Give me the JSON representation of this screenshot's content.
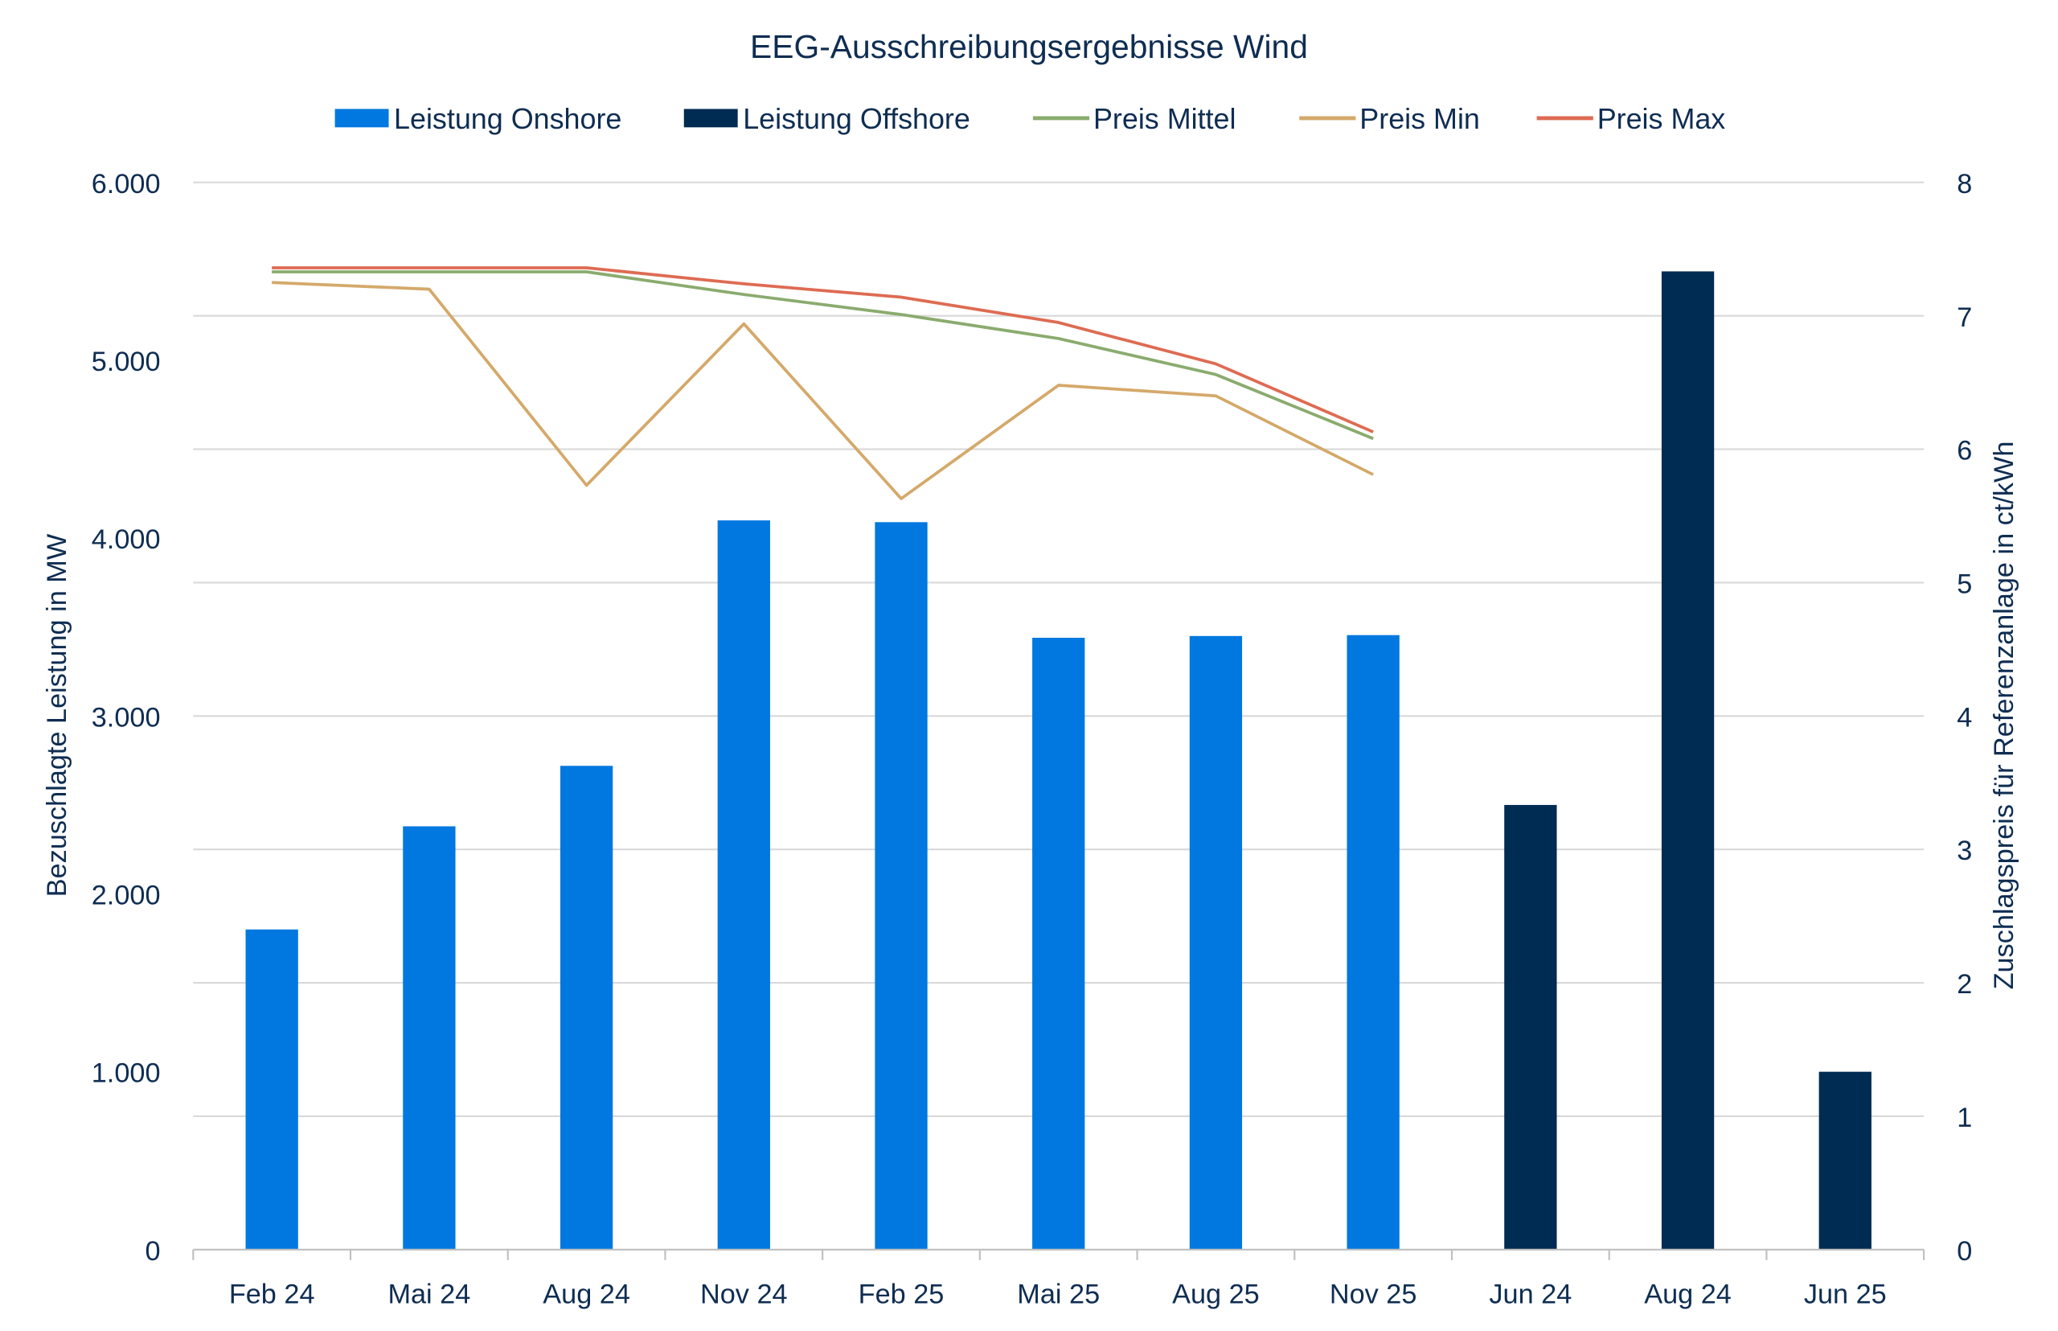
{
  "chart_data": {
    "type": "bar",
    "title": "EEG-Ausschreibungsergebnisse Wind",
    "categories": [
      "Feb 24",
      "Mai 24",
      "Aug 24",
      "Nov 24",
      "Feb 25",
      "Mai 25",
      "Aug 25",
      "Nov 25",
      "Jun 24",
      "Aug 24",
      "Jun 25"
    ],
    "ylabel": "Bezuschlagte Leistung in MW",
    "y2label": "Zuschlagspreis für Referenzanlage in ct/kWh",
    "ylim": [
      0,
      6000
    ],
    "y2lim": [
      0,
      8
    ],
    "yticks": [
      "0",
      "1.000",
      "2.000",
      "3.000",
      "4.000",
      "5.000",
      "6.000"
    ],
    "y2ticks": [
      "0",
      "1",
      "2",
      "3",
      "4",
      "5",
      "6",
      "7",
      "8"
    ],
    "grid": true,
    "legend_position": "top",
    "series": [
      {
        "name": "Leistung Onshore",
        "kind": "bar",
        "axis": "left",
        "color": "#0078E0",
        "values": [
          1800,
          2380,
          2720,
          4100,
          4090,
          3440,
          3450,
          3455,
          null,
          null,
          null
        ]
      },
      {
        "name": "Leistung Offshore",
        "kind": "bar",
        "axis": "left",
        "color": "#002B52",
        "values": [
          null,
          null,
          null,
          null,
          null,
          null,
          null,
          null,
          2500,
          5500,
          1000
        ]
      },
      {
        "name": "Preis Mittel",
        "kind": "line",
        "axis": "right",
        "color": "#8AAB6E",
        "values": [
          7.33,
          7.33,
          7.33,
          7.16,
          7.01,
          6.83,
          6.56,
          6.08,
          null,
          null,
          null
        ]
      },
      {
        "name": "Preis Min",
        "kind": "line",
        "axis": "right",
        "color": "#D4A96A",
        "values": [
          7.25,
          7.2,
          5.73,
          6.94,
          5.63,
          6.48,
          6.4,
          5.81,
          null,
          null,
          null
        ]
      },
      {
        "name": "Preis Max",
        "kind": "line",
        "axis": "right",
        "color": "#DE6B52",
        "values": [
          7.36,
          7.36,
          7.36,
          7.24,
          7.14,
          6.95,
          6.64,
          6.13,
          null,
          null,
          null
        ]
      }
    ]
  }
}
